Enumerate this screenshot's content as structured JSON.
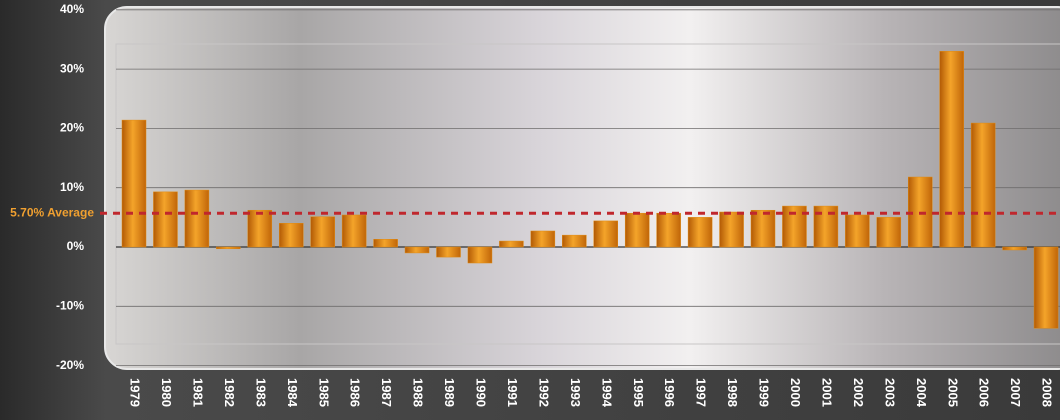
{
  "chart_data": {
    "type": "bar",
    "categories": [
      "1979",
      "1980",
      "1981",
      "1982",
      "1983",
      "1984",
      "1985",
      "1986",
      "1987",
      "1988",
      "1989",
      "1990",
      "1991",
      "1992",
      "1993",
      "1994",
      "1995",
      "1996",
      "1997",
      "1998",
      "1999",
      "2000",
      "2001",
      "2002",
      "2003",
      "2004",
      "2005",
      "2006",
      "2007",
      "2008"
    ],
    "values": [
      21.4,
      9.3,
      9.6,
      -0.3,
      6.2,
      4.0,
      5.1,
      5.4,
      1.3,
      -1.0,
      -1.7,
      -2.7,
      1.0,
      2.7,
      2.0,
      4.4,
      5.7,
      5.7,
      5.0,
      5.9,
      6.2,
      6.9,
      6.9,
      5.4,
      5.0,
      11.8,
      33.0,
      20.9,
      -0.5,
      -13.7
    ],
    "color": "#e08a12",
    "average": {
      "value": 5.7,
      "label": "5.70% Average",
      "color": "#c0272d"
    },
    "ylim": [
      -20,
      40
    ],
    "yticks": [
      {
        "value": -20,
        "label": "-20%"
      },
      {
        "value": -10,
        "label": "-10%"
      },
      {
        "value": 0,
        "label": "0%"
      },
      {
        "value": 10,
        "label": "10%"
      },
      {
        "value": 20,
        "label": "20%"
      },
      {
        "value": 30,
        "label": "30%"
      },
      {
        "value": 40,
        "label": "40%"
      }
    ],
    "grid": true
  }
}
